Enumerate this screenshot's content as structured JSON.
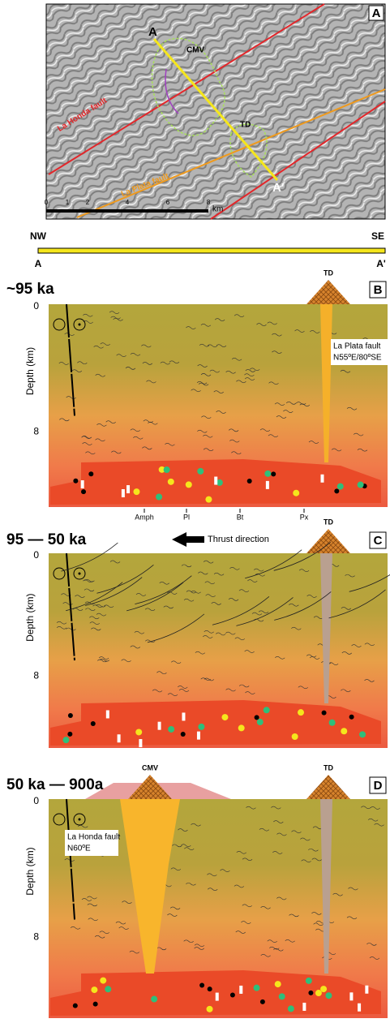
{
  "map": {
    "panel": "A",
    "start": "A",
    "end": "A'",
    "cmv": "CMV",
    "td": "TD",
    "honda": "La Honda fault",
    "plata": "La Plata fault",
    "scale": [
      "0",
      "1",
      "2",
      "4",
      "6",
      "8"
    ],
    "unit": "km"
  },
  "profile": {
    "left": "NW",
    "right": "SE",
    "start": "A",
    "end": "A'"
  },
  "panels": [
    {
      "title": "~95 ka",
      "panel": "B",
      "td": "TD",
      "depth": [
        "0",
        "8"
      ],
      "axis": "Depth (km)",
      "fault": "La Plata fault",
      "fault_orientation": "N55ºE/80ºSE",
      "minerals": [
        "Amph",
        "Pl",
        "Bt",
        "Px"
      ]
    },
    {
      "title": "95 — 50 ka",
      "panel": "C",
      "td": "TD",
      "depth": [
        "0",
        "8"
      ],
      "axis": "Depth (km)",
      "arrow": "Thrust direction"
    },
    {
      "title": "50 ka — 900a",
      "panel": "D",
      "cmv": "CMV",
      "td": "TD",
      "depth": [
        "0",
        "8"
      ],
      "axis": "Depth (km)",
      "fault": "La Honda fault",
      "fault_orientation": "N60ºE"
    }
  ]
}
